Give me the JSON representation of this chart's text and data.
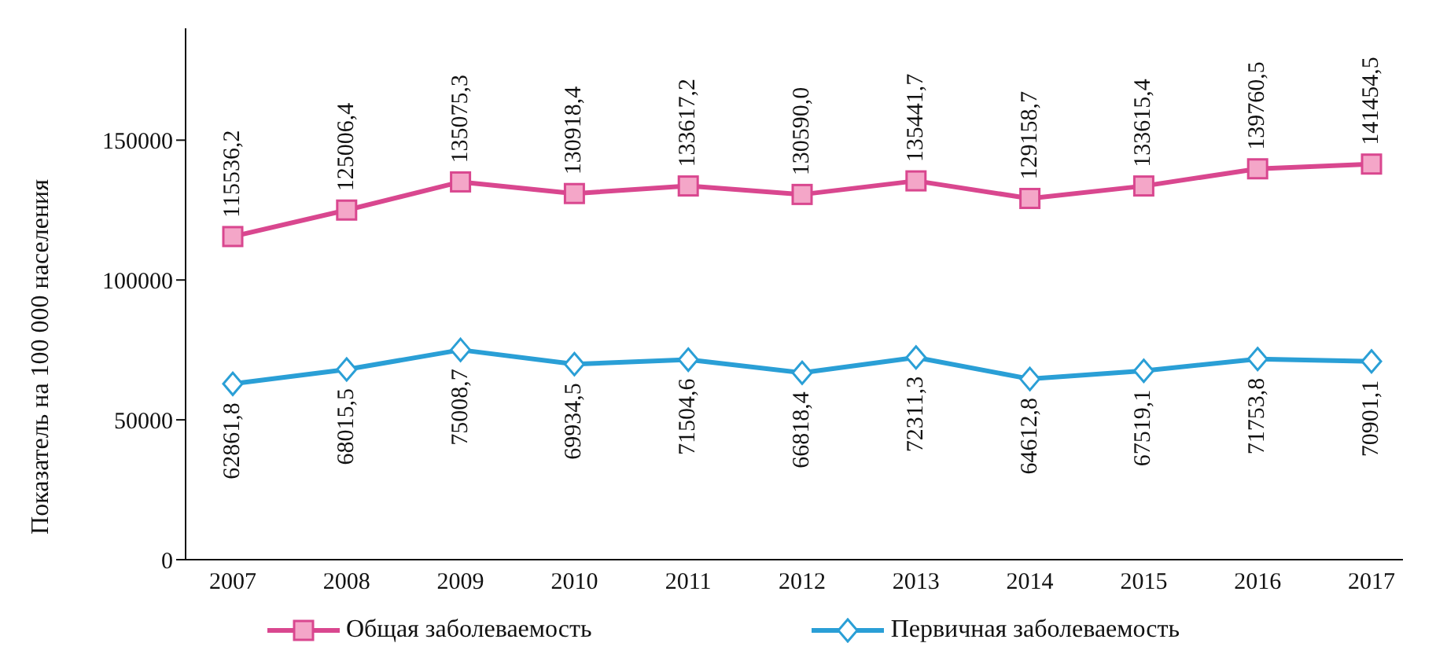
{
  "chart_data": {
    "type": "line",
    "ylabel": "Показатель на 100 000 населения",
    "categories": [
      "2007",
      "2008",
      "2009",
      "2010",
      "2011",
      "2012",
      "2013",
      "2014",
      "2015",
      "2016",
      "2017"
    ],
    "ylim": [
      0,
      190000
    ],
    "yticks": [
      0,
      50000,
      100000,
      150000
    ],
    "legend": "bottom",
    "series": [
      {
        "name": "Общая заболеваемость",
        "color": "#d9478f",
        "marker": "square",
        "values": [
          115536.2,
          125006.4,
          135075.3,
          130918.4,
          133617.2,
          130590.0,
          135441.7,
          129158.7,
          133615.4,
          139760.5,
          141454.5
        ],
        "value_labels": [
          "115536,2",
          "125006,4",
          "135075,3",
          "130918,4",
          "133617,2",
          "130590,0",
          "135441,7",
          "129158,7",
          "133615,4",
          "139760,5",
          "141454,5"
        ]
      },
      {
        "name": "Первичная заболеваемость",
        "color": "#2a9fd6",
        "marker": "diamond",
        "values": [
          62861.8,
          68015.5,
          75008.7,
          69934.5,
          71504.6,
          66818.4,
          72311.3,
          64612.8,
          67519.1,
          71753.8,
          70901.1
        ],
        "value_labels": [
          "62861,8",
          "68015,5",
          "75008,7",
          "69934,5",
          "71504,6",
          "66818,4",
          "72311,3",
          "64612,8",
          "67519,1",
          "71753,8",
          "70901,1"
        ]
      }
    ]
  }
}
